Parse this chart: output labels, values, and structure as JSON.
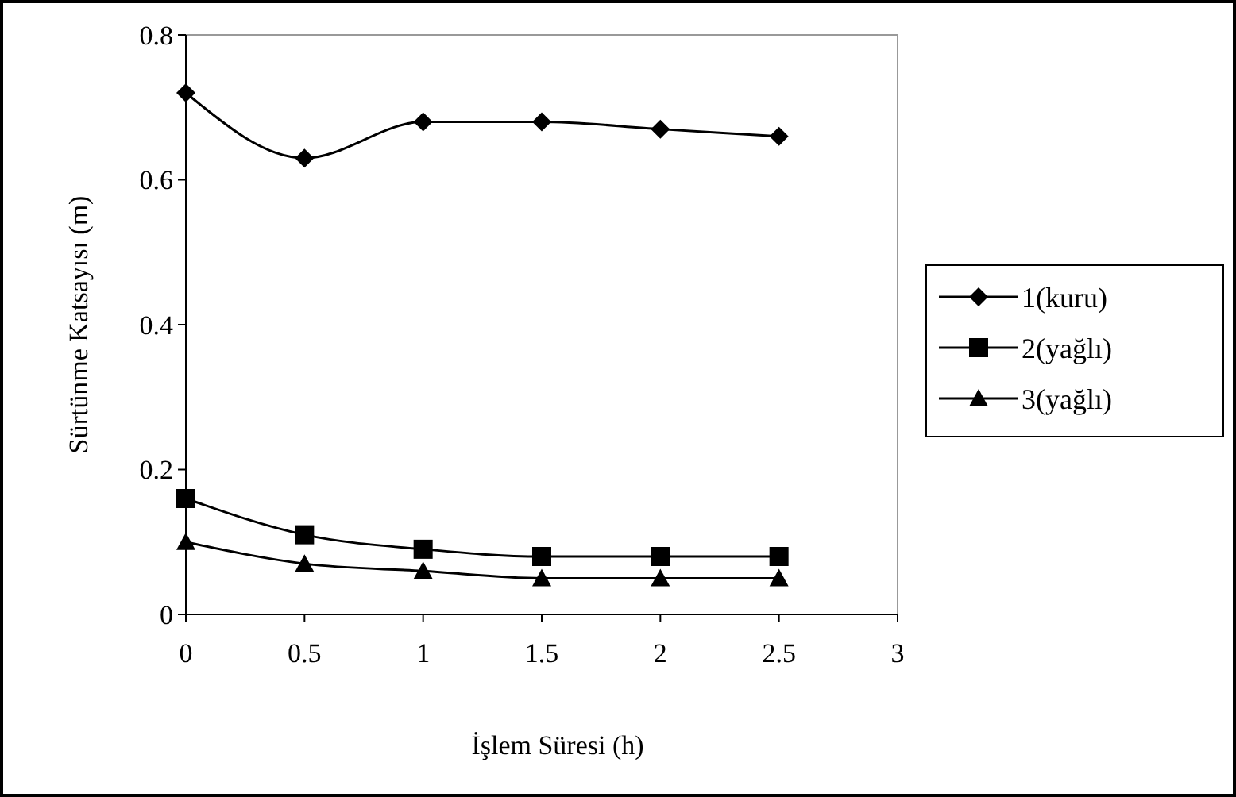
{
  "chart_data": {
    "type": "line",
    "xlabel": "İşlem Süresi (h)",
    "ylabel": "Sürtünme Katsayısı (m)",
    "x": [
      0,
      0.5,
      1,
      1.5,
      2,
      2.5
    ],
    "xlim": [
      0,
      3
    ],
    "xticks": [
      0,
      0.5,
      1,
      1.5,
      2,
      2.5,
      3
    ],
    "ylim": [
      0,
      0.8
    ],
    "yticks": [
      0,
      0.2,
      0.4,
      0.6,
      0.8
    ],
    "legend": "right",
    "grid": false,
    "series": [
      {
        "name": "1(kuru)",
        "color": "#000000",
        "marker": "diamond",
        "values": [
          0.72,
          0.63,
          0.68,
          0.68,
          0.67,
          0.66
        ]
      },
      {
        "name": "2(yağlı)",
        "color": "#000000",
        "marker": "square",
        "values": [
          0.16,
          0.11,
          0.09,
          0.08,
          0.08,
          0.08
        ]
      },
      {
        "name": "3(yağlı)",
        "color": "#000000",
        "marker": "triangle",
        "values": [
          0.1,
          0.07,
          0.06,
          0.05,
          0.05,
          0.05
        ]
      }
    ]
  }
}
